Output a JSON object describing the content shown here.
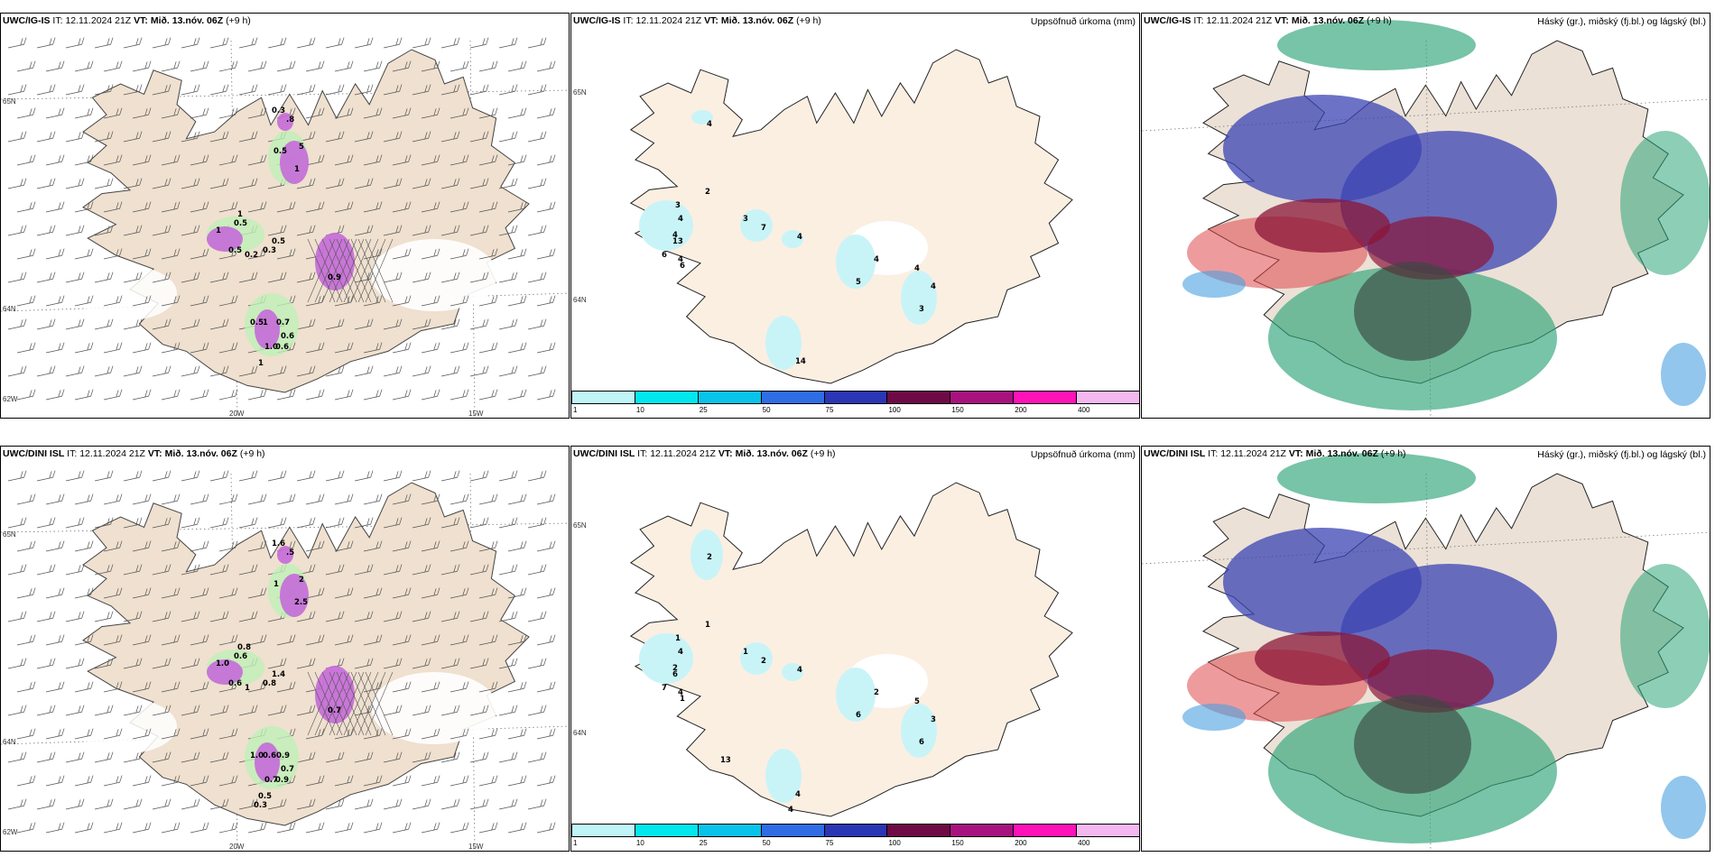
{
  "panels": [
    {
      "model": "UWC/IG-IS",
      "it_label": "IT:",
      "it_value": "12.11.2024 21Z",
      "vt_label": "VT: Mið. 13.nóv. 06Z",
      "lead": "(+9 h)",
      "axis_lat_top": "65N",
      "axis_lat_bottom": "64N",
      "axis_lat_low": "62W",
      "axis_lon_left": "20W",
      "axis_lon_right": "15W",
      "labels": [
        "0.3",
        ".8",
        "0.5",
        "5",
        "1",
        "1",
        "0.5",
        "1",
        "0.5",
        "0.2",
        "0.5",
        "0.3",
        "0.9",
        "1",
        "0.5",
        "0.7",
        "0.6",
        "1.0",
        "0.6",
        "1"
      ]
    },
    {
      "model": "UWC/IG-IS",
      "it_label": "IT:",
      "it_value": "12.11.2024 21Z",
      "vt_label": "VT: Mið. 13.nóv. 06Z",
      "lead": "(+9 h)",
      "right_title": "Uppsöfnuð úrkoma (mm)",
      "axis_lat_top": "65N",
      "axis_lat_bottom": "64N",
      "labels": [
        "4",
        "2",
        "3",
        "4",
        "4",
        "7",
        "4",
        "6",
        "4",
        "13",
        "6",
        "3",
        "4",
        "5",
        "4",
        "4",
        "3",
        "14"
      ],
      "colorbar_ticks": [
        "1",
        "10",
        "25",
        "50",
        "75",
        "100",
        "150",
        "200",
        "400"
      ]
    },
    {
      "model": "UWC/IG-IS",
      "it_label": "IT:",
      "it_value": "12.11.2024 21Z",
      "vt_label": "VT: Mið. 13.nóv. 06Z",
      "lead": "(+9 h)",
      "right_title": "Háský (gr.), miðský (fj.bl.) og lágský (bl.)"
    },
    {
      "model": "UWC/DINI ISL",
      "it_label": "IT:",
      "it_value": "12.11.2024 21Z",
      "vt_label": "VT: Mið. 13.nóv. 06Z",
      "lead": "(+9 h)",
      "axis_lat_top": "65N",
      "axis_lat_bottom": "64N",
      "axis_lat_low": "62W",
      "axis_lon_left": "20W",
      "axis_lon_right": "15W",
      "labels": [
        "1.6",
        ".5",
        "1",
        "2",
        "2.5",
        "0.8",
        "0.6",
        "1.0",
        "0.6",
        "1",
        "1.4",
        "0.8",
        "0.7",
        "0.6",
        "1.0",
        "0.9",
        "0.7",
        "0.7",
        "0.9",
        "0.5",
        "0.3"
      ]
    },
    {
      "model": "UWC/DINI ISL",
      "it_label": "IT:",
      "it_value": "12.11.2024 21Z",
      "vt_label": "VT: Mið. 13.nóv. 06Z",
      "lead": "(+9 h)",
      "right_title": "Uppsöfnuð úrkoma (mm)",
      "axis_lat_top": "65N",
      "axis_lat_bottom": "64N",
      "labels": [
        "2",
        "1",
        "1",
        "4",
        "2",
        "2",
        "4",
        "7",
        "4",
        "6",
        "1",
        "1",
        "2",
        "6",
        "5",
        "3",
        "6",
        "4",
        "4",
        "13"
      ],
      "colorbar_ticks": [
        "1",
        "10",
        "25",
        "50",
        "75",
        "100",
        "150",
        "200",
        "400"
      ]
    },
    {
      "model": "UWC/DINI ISL",
      "it_label": "IT:",
      "it_value": "12.11.2024 21Z",
      "vt_label": "VT: Mið. 13.nóv. 06Z",
      "lead": "(+9 h)",
      "right_title": "Háský (gr.), miðský (fj.bl.) og lágský (bl.)"
    }
  ],
  "colors": {
    "land": "#efe0cf",
    "land_precip": "#fbefe2",
    "precip_cyan": "#c8f4f8",
    "precip_magenta": "#c46ad8",
    "precip_green": "#bff0b6",
    "cloud_high": "#2ea57a",
    "cloud_mid": "#3b43b3",
    "cloud_low": "#8a1638",
    "colorbar": [
      "#bff4f8",
      "#00e8ee",
      "#08c3ea",
      "#2f6de4",
      "#2a36b4",
      "#6e0a45",
      "#a8127e",
      "#ff12b8",
      "#f4b8f0"
    ]
  }
}
